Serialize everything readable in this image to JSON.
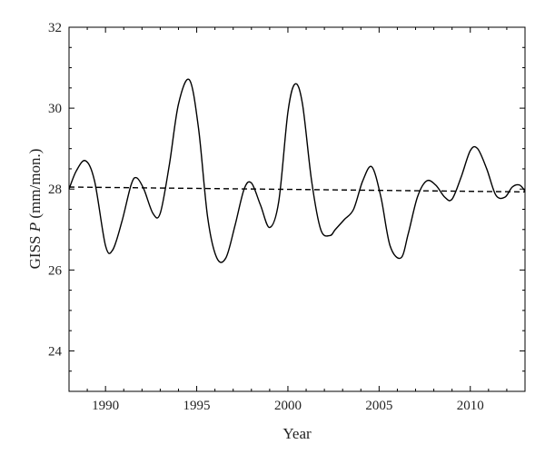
{
  "chart_data": {
    "type": "line",
    "title": "",
    "xlabel": "Year",
    "ylabel_prefix": "GISS ",
    "ylabel_var": "P",
    "ylabel_suffix": " (mm/mon.)",
    "xlim": [
      1988,
      2013
    ],
    "ylim": [
      23,
      32
    ],
    "xticks": [
      1990,
      1995,
      2000,
      2005,
      2010
    ],
    "yticks": [
      24,
      26,
      28,
      30,
      32
    ],
    "grid": false,
    "legend": false,
    "series": [
      {
        "style": "solid",
        "color": "#000000",
        "x": [
          1988.0,
          1988.4,
          1988.9,
          1989.4,
          1990.0,
          1990.4,
          1990.9,
          1991.4,
          1991.7,
          1992.1,
          1992.6,
          1993.0,
          1993.5,
          1994.0,
          1994.6,
          1995.1,
          1995.6,
          1996.1,
          1996.6,
          1997.1,
          1997.6,
          1998.0,
          1998.5,
          1999.0,
          1999.5,
          2000.0,
          2000.4,
          2000.8,
          2001.3,
          2001.8,
          2002.3,
          2002.6,
          2003.1,
          2003.6,
          2004.1,
          2004.6,
          2005.1,
          2005.6,
          2006.2,
          2006.6,
          2007.1,
          2007.6,
          2008.1,
          2008.6,
          2009.0,
          2009.5,
          2010.0,
          2010.4,
          2010.9,
          2011.4,
          2011.9,
          2012.3,
          2012.7,
          2013.0
        ],
        "y": [
          28.0,
          28.45,
          28.7,
          28.2,
          26.6,
          26.5,
          27.2,
          28.1,
          28.28,
          28.0,
          27.4,
          27.4,
          28.6,
          30.1,
          30.7,
          29.5,
          27.3,
          26.3,
          26.3,
          27.1,
          28.0,
          28.15,
          27.6,
          27.05,
          27.7,
          29.9,
          30.6,
          30.1,
          28.2,
          27.0,
          26.85,
          27.0,
          27.25,
          27.5,
          28.2,
          28.55,
          27.8,
          26.6,
          26.3,
          26.9,
          27.8,
          28.2,
          28.1,
          27.8,
          27.75,
          28.3,
          28.95,
          29.0,
          28.5,
          27.85,
          27.8,
          28.05,
          28.1,
          27.95
        ]
      },
      {
        "style": "dashed",
        "color": "#000000",
        "x": [
          1988.0,
          2013.0
        ],
        "y": [
          28.05,
          27.93
        ]
      }
    ]
  }
}
